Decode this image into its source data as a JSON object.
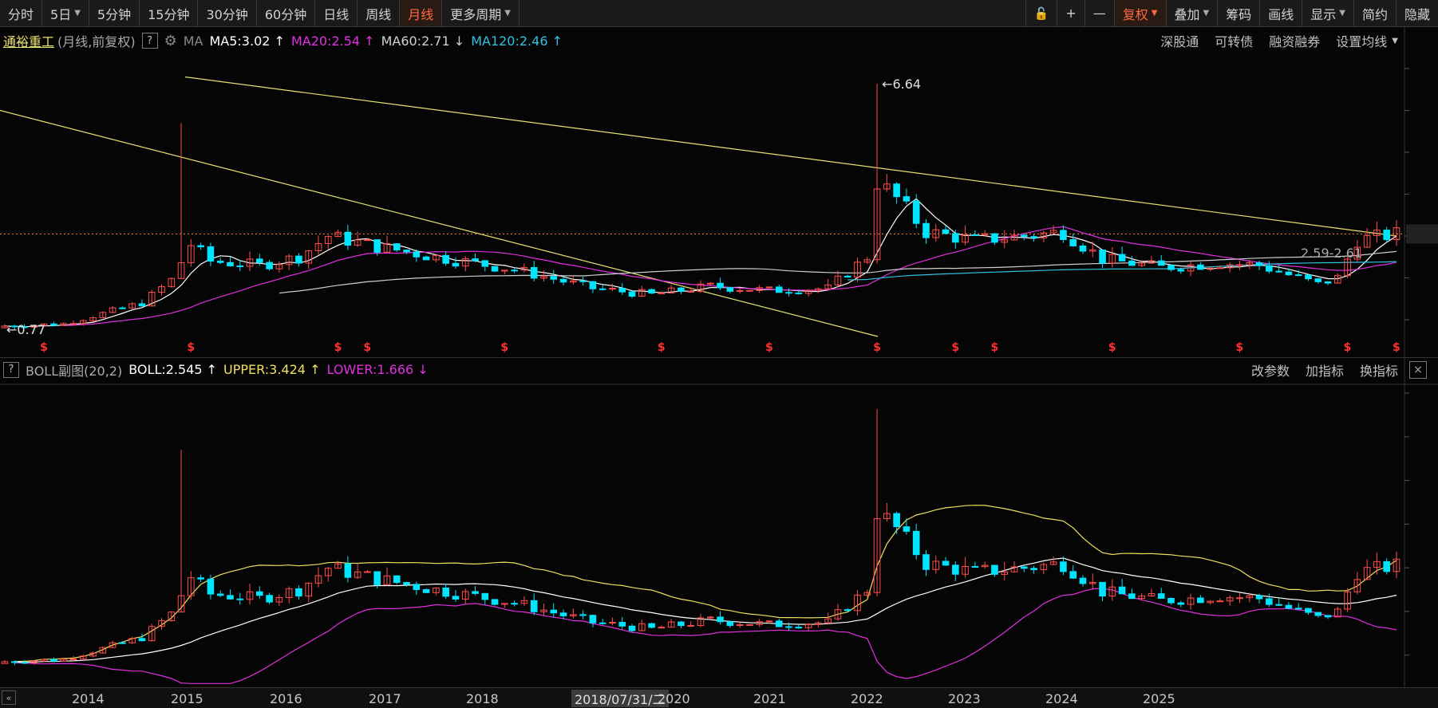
{
  "toolbar": {
    "left": [
      {
        "label": "分时",
        "caret": false,
        "active": false
      },
      {
        "label": "5日",
        "caret": true,
        "active": false
      },
      {
        "label": "5分钟",
        "caret": false,
        "active": false
      },
      {
        "label": "15分钟",
        "caret": false,
        "active": false
      },
      {
        "label": "30分钟",
        "caret": false,
        "active": false
      },
      {
        "label": "60分钟",
        "caret": false,
        "active": false
      },
      {
        "label": "日线",
        "caret": false,
        "active": false
      },
      {
        "label": "周线",
        "caret": false,
        "active": false
      },
      {
        "label": "月线",
        "caret": false,
        "active": true
      },
      {
        "label": "更多周期",
        "caret": true,
        "active": false
      }
    ],
    "right": [
      {
        "label": "",
        "icon": "unlock-icon",
        "active": false,
        "caret": false
      },
      {
        "label": "+",
        "icon": "zoom-in-icon",
        "active": false,
        "caret": false
      },
      {
        "label": "—",
        "icon": "zoom-out-icon",
        "active": false,
        "caret": false
      },
      {
        "label": "复权",
        "active": true,
        "caret": true
      },
      {
        "label": "叠加",
        "active": false,
        "caret": true
      },
      {
        "label": "筹码",
        "active": false,
        "caret": false
      },
      {
        "label": "画线",
        "active": false,
        "caret": false
      },
      {
        "label": "显示",
        "active": false,
        "caret": true
      },
      {
        "label": "简约",
        "active": false,
        "caret": false
      },
      {
        "label": "隐藏",
        "active": false,
        "caret": false
      }
    ]
  },
  "main_info": {
    "stock_name": "通裕重工",
    "period": "(月线,前复权)",
    "help": "?",
    "ma_label": "MA",
    "ma5": "MA5:3.02",
    "ma20": "MA20:2.54",
    "ma60": "MA60:2.71",
    "ma120": "MA120:2.46",
    "ma5_dir": "↑",
    "ma20_dir": "↑",
    "ma60_dir": "↓",
    "ma120_dir": "↑",
    "links": [
      "深股通",
      "可转债",
      "融资融券",
      "设置均线"
    ]
  },
  "sub_info": {
    "help": "?",
    "name": "BOLL副图(20,2)",
    "boll": "BOLL:2.545",
    "upper": "UPPER:3.424",
    "lower": "LOWER:1.666",
    "boll_dir": "↑",
    "upper_dir": "↑",
    "lower_dir": "↓",
    "links": [
      "改参数",
      "加指标",
      "换指标"
    ],
    "close": "×"
  },
  "chart_annotations": {
    "high_label": "6.64",
    "low_label": "0.77",
    "range_label": "2.59-2.61",
    "dividend_marker": "$"
  },
  "colors": {
    "up": "#ff4d4d",
    "down": "#00e5ff",
    "ma5": "#ffffff",
    "ma20": "#e030e0",
    "ma60": "#cfcfcf",
    "ma120": "#30c0e0",
    "trend": "#e8e070",
    "upper": "#f0e060",
    "lower": "#e030e0",
    "mid": "#ffffff",
    "accent": "#ff6a3d"
  },
  "xaxis": {
    "labels": [
      "2014",
      "2015",
      "2016",
      "2017",
      "2018",
      "2020",
      "2021",
      "2022",
      "2023",
      "2024",
      "2025"
    ],
    "cursor_date": "2018/07/31/二"
  },
  "chart_data": {
    "type": "candlestick",
    "period": "monthly",
    "price_high": 6.64,
    "price_low": 0.77,
    "latest_ma5": 3.02,
    "latest_ma20": 2.54,
    "latest_ma60": 2.71,
    "latest_ma120": 2.46,
    "boll": 2.545,
    "upper": 3.424,
    "lower": 1.666
  }
}
